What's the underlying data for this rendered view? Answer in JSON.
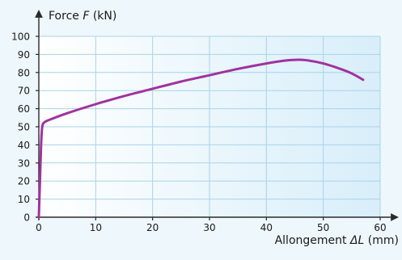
{
  "chart_data": {
    "type": "line",
    "ylabel": {
      "pre": "Force ",
      "var": "F",
      "post": " (kN)"
    },
    "xlabel": {
      "pre": "Allongement ",
      "var": "ΔL",
      "post": " (mm)"
    },
    "xlim": [
      0,
      60
    ],
    "ylim": [
      0,
      100
    ],
    "xticks": [
      0,
      10,
      20,
      30,
      40,
      50,
      60
    ],
    "yticks": [
      0,
      10,
      20,
      30,
      40,
      50,
      60,
      70,
      80,
      90,
      100
    ],
    "grid": true,
    "colors": {
      "line": "#a0329e",
      "plot_bg_left": "#ffffff",
      "plot_bg_right": "#d8eefa",
      "grid": "#a9d3ea",
      "axis": "#2a2a2a"
    },
    "series": [
      {
        "x": [
          0,
          0.2,
          0.4,
          0.6,
          1,
          2,
          5,
          10,
          15,
          20,
          25,
          30,
          35,
          40,
          43,
          45,
          47,
          50,
          53,
          55,
          57
        ],
        "y": [
          0,
          20,
          40,
          50,
          52.5,
          54,
          57.5,
          62.5,
          67,
          71,
          75,
          78.5,
          82,
          85,
          86.5,
          87,
          86.8,
          85,
          82,
          79.5,
          76
        ]
      }
    ]
  }
}
